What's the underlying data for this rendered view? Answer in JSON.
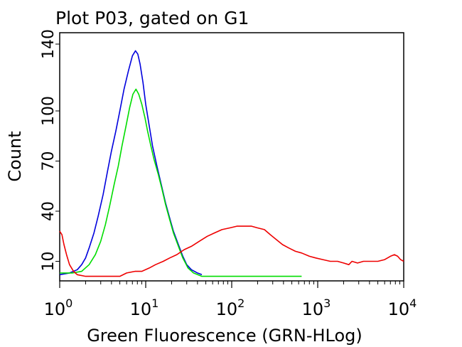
{
  "chart_data": {
    "type": "line",
    "title": "Plot P03, gated on G1",
    "xlabel": "Green Fluorescence (GRN-HLog)",
    "ylabel": "Count",
    "x_scale": "log",
    "xlim": [
      1,
      10000
    ],
    "ylim": [
      0,
      140
    ],
    "x_ticks": [
      {
        "value": 1,
        "base": "10",
        "exp": "0"
      },
      {
        "value": 10,
        "base": "10",
        "exp": "1"
      },
      {
        "value": 100,
        "base": "10",
        "exp": "2"
      },
      {
        "value": 1000,
        "base": "10",
        "exp": "3"
      },
      {
        "value": 10000,
        "base": "10",
        "exp": "4"
      }
    ],
    "y_ticks": [
      {
        "value": 10,
        "label": "10"
      },
      {
        "value": 40,
        "label": "40"
      },
      {
        "value": 70,
        "label": "70"
      },
      {
        "value": 100,
        "label": "100"
      },
      {
        "value": 140,
        "label": "140"
      }
    ],
    "grid": false,
    "legend": "none",
    "series": [
      {
        "color": "#0000dd",
        "points": [
          [
            1.0,
            2
          ],
          [
            1.3,
            3
          ],
          [
            1.6,
            5
          ],
          [
            1.8,
            8
          ],
          [
            2.0,
            12
          ],
          [
            2.2,
            18
          ],
          [
            2.5,
            27
          ],
          [
            2.8,
            37
          ],
          [
            3.2,
            50
          ],
          [
            3.6,
            64
          ],
          [
            4.0,
            76
          ],
          [
            4.5,
            88
          ],
          [
            5.0,
            100
          ],
          [
            5.6,
            113
          ],
          [
            6.3,
            124
          ],
          [
            7.0,
            133
          ],
          [
            7.6,
            136
          ],
          [
            8.1,
            134
          ],
          [
            8.6,
            128
          ],
          [
            9.3,
            117
          ],
          [
            10.0,
            104
          ],
          [
            11.0,
            91
          ],
          [
            12.0,
            79
          ],
          [
            13.5,
            67
          ],
          [
            15.0,
            57
          ],
          [
            17.0,
            45
          ],
          [
            19.0,
            36
          ],
          [
            21.0,
            28
          ],
          [
            24.0,
            20
          ],
          [
            27.0,
            13
          ],
          [
            30.0,
            8
          ],
          [
            34.0,
            5
          ],
          [
            40.0,
            3
          ],
          [
            45.0,
            2
          ]
        ]
      },
      {
        "color": "#00dd00",
        "points": [
          [
            1.0,
            3
          ],
          [
            1.4,
            3
          ],
          [
            1.8,
            4
          ],
          [
            2.2,
            8
          ],
          [
            2.6,
            14
          ],
          [
            3.0,
            22
          ],
          [
            3.4,
            32
          ],
          [
            3.8,
            43
          ],
          [
            4.3,
            56
          ],
          [
            4.8,
            67
          ],
          [
            5.3,
            79
          ],
          [
            5.9,
            91
          ],
          [
            6.5,
            102
          ],
          [
            7.1,
            110
          ],
          [
            7.7,
            113
          ],
          [
            8.3,
            110
          ],
          [
            9.0,
            104
          ],
          [
            9.8,
            96
          ],
          [
            10.5,
            88
          ],
          [
            11.5,
            79
          ],
          [
            12.5,
            71
          ],
          [
            14.0,
            62
          ],
          [
            15.5,
            53
          ],
          [
            17.0,
            44
          ],
          [
            19.0,
            35
          ],
          [
            21.0,
            27
          ],
          [
            24.0,
            19
          ],
          [
            27.0,
            12
          ],
          [
            31.0,
            6
          ],
          [
            36.0,
            3
          ],
          [
            45.0,
            1
          ],
          [
            60.0,
            1
          ],
          [
            100.0,
            1
          ],
          [
            200.0,
            1
          ],
          [
            400.0,
            1
          ],
          [
            650.0,
            1
          ]
        ]
      },
      {
        "color": "#ee0000",
        "points": [
          [
            1.0,
            28
          ],
          [
            1.06,
            26
          ],
          [
            1.12,
            20
          ],
          [
            1.2,
            14
          ],
          [
            1.3,
            8
          ],
          [
            1.45,
            4
          ],
          [
            1.6,
            2
          ],
          [
            2.0,
            1
          ],
          [
            3.0,
            1
          ],
          [
            4.0,
            1
          ],
          [
            5.0,
            1
          ],
          [
            6.0,
            3
          ],
          [
            7.5,
            4
          ],
          [
            9.0,
            4
          ],
          [
            11.0,
            6
          ],
          [
            13.0,
            8
          ],
          [
            16.0,
            10
          ],
          [
            19.0,
            12
          ],
          [
            23.0,
            14
          ],
          [
            28.0,
            17
          ],
          [
            34.0,
            19
          ],
          [
            42.0,
            22
          ],
          [
            52.0,
            25
          ],
          [
            63.0,
            27
          ],
          [
            77.0,
            29
          ],
          [
            95.0,
            30
          ],
          [
            115.0,
            31
          ],
          [
            140.0,
            31
          ],
          [
            170.0,
            31
          ],
          [
            200.0,
            30
          ],
          [
            240.0,
            29
          ],
          [
            280.0,
            26
          ],
          [
            330.0,
            23
          ],
          [
            390.0,
            20
          ],
          [
            460.0,
            18
          ],
          [
            550.0,
            16
          ],
          [
            650.0,
            15
          ],
          [
            800.0,
            13
          ],
          [
            950.0,
            12
          ],
          [
            1150.0,
            11
          ],
          [
            1400.0,
            10
          ],
          [
            1700.0,
            10
          ],
          [
            2000.0,
            9
          ],
          [
            2300.0,
            8
          ],
          [
            2500.0,
            10
          ],
          [
            2900.0,
            9
          ],
          [
            3400.0,
            10
          ],
          [
            4000.0,
            10
          ],
          [
            5000.0,
            10
          ],
          [
            6000.0,
            11
          ],
          [
            7000.0,
            13
          ],
          [
            7800.0,
            14
          ],
          [
            8500.0,
            13
          ],
          [
            9200.0,
            11
          ],
          [
            10000.0,
            10
          ]
        ]
      }
    ]
  }
}
